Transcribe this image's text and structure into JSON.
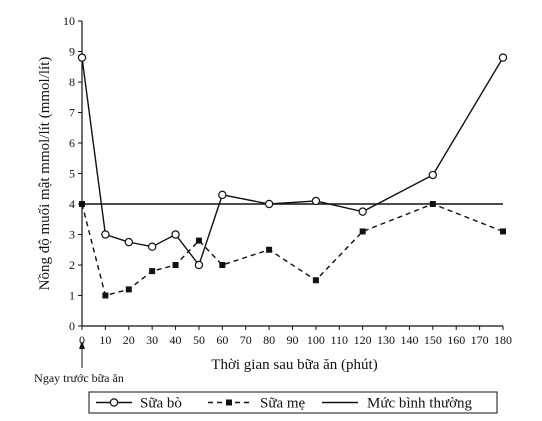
{
  "chart_data": {
    "type": "line",
    "xlabel": "Thời gian sau bữa ăn (phút)",
    "ylabel": "Nồng độ muối mật mmol/lít (mmol/lít)",
    "x_ticks": [
      0,
      10,
      20,
      30,
      40,
      50,
      60,
      70,
      80,
      90,
      100,
      110,
      120,
      130,
      140,
      150,
      160,
      170,
      180
    ],
    "y_ticks": [
      0,
      1,
      2,
      3,
      4,
      5,
      6,
      7,
      8,
      9,
      10
    ],
    "xlim": [
      0,
      180
    ],
    "ylim": [
      0,
      10
    ],
    "grid": false,
    "legend_position": "bottom",
    "annotation": {
      "text": "Ngay trước bữa ăn",
      "x": 0
    },
    "series": [
      {
        "name": "Sữa bò",
        "style": "solid",
        "marker": "open-circle",
        "x": [
          0,
          10,
          20,
          30,
          40,
          50,
          60,
          80,
          100,
          120,
          150,
          180
        ],
        "y": [
          8.8,
          3.0,
          2.75,
          2.6,
          3.0,
          2.0,
          4.3,
          4.0,
          4.1,
          3.75,
          4.95,
          8.8
        ]
      },
      {
        "name": "Sữa mẹ",
        "style": "dashed",
        "marker": "filled-square",
        "x": [
          0,
          10,
          20,
          30,
          40,
          50,
          60,
          80,
          100,
          120,
          150,
          180
        ],
        "y": [
          4.0,
          1.0,
          1.2,
          1.8,
          2.0,
          2.8,
          2.0,
          2.5,
          1.5,
          3.1,
          4.0,
          3.1
        ]
      },
      {
        "name": "Mức bình thường",
        "style": "solid",
        "marker": "none",
        "x": [
          0,
          180
        ],
        "y": [
          4.0,
          4.0
        ]
      }
    ]
  }
}
